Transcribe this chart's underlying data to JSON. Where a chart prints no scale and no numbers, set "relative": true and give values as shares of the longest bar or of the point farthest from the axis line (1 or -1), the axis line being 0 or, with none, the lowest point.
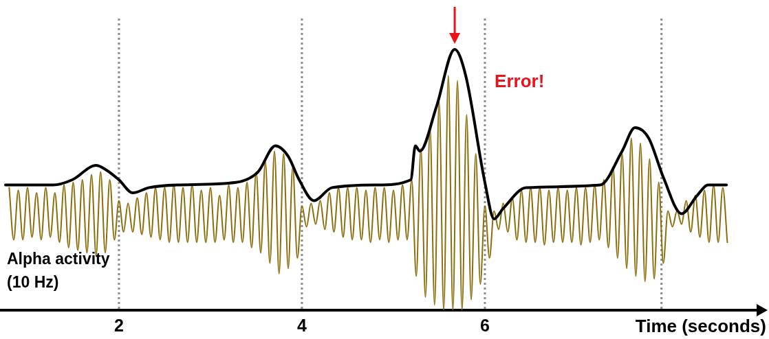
{
  "chart_data": {
    "type": "line",
    "relative": true,
    "xlabel": "Time (seconds)",
    "ylabel": "Alpha activity\n(10 Hz)",
    "xlim": [
      0.7,
      9.0
    ],
    "xticks": [
      2,
      4,
      6
    ],
    "grid": false,
    "legend": false,
    "marker": "none",
    "line_style": "solid",
    "annotations": [
      {
        "text": "Error!",
        "x": 5.67,
        "y": 1.0
      }
    ],
    "ref_lines": [
      {
        "axis": "x",
        "value": 2,
        "color": "#8c8c8c",
        "line_style": "dotted"
      },
      {
        "axis": "x",
        "value": 4,
        "color": "#8c8c8c",
        "line_style": "dotted"
      },
      {
        "axis": "x",
        "value": 6,
        "color": "#8c8c8c",
        "line_style": "dotted"
      },
      {
        "axis": "x",
        "value": 7.93,
        "color": "#8c8c8c",
        "line_style": "dotted"
      }
    ],
    "series": [
      {
        "color": "#8a6d0b",
        "x": [
          0.8,
          0.85,
          0.9,
          0.95,
          1.0,
          1.05,
          1.1,
          1.15,
          1.2,
          1.25,
          1.3,
          1.35,
          1.4,
          1.45,
          1.5,
          1.55,
          1.6,
          1.65,
          1.7,
          1.75,
          1.8,
          1.85,
          1.9,
          1.95,
          2.0,
          2.05,
          2.1,
          2.15,
          2.2,
          2.25,
          2.3,
          2.35,
          2.4,
          2.45,
          2.5,
          2.55,
          2.6,
          2.65,
          2.7,
          2.75,
          2.8,
          2.85,
          2.9,
          2.95,
          3.0,
          3.05,
          3.1,
          3.15,
          3.2,
          3.25,
          3.3,
          3.35,
          3.4,
          3.45,
          3.5,
          3.55,
          3.6,
          3.65,
          3.7,
          3.75,
          3.8,
          3.85,
          3.9,
          3.95,
          4.0,
          4.05,
          4.1,
          4.15,
          4.2,
          4.25,
          4.3,
          4.35,
          4.4,
          4.45,
          4.5,
          4.55,
          4.6,
          4.65,
          4.7,
          4.75,
          4.8,
          4.85,
          4.9,
          4.95,
          5.0,
          5.05,
          5.1,
          5.15,
          5.2,
          5.25,
          5.3,
          5.35,
          5.4,
          5.45,
          5.5,
          5.55,
          5.6,
          5.65,
          5.7,
          5.75,
          5.8,
          5.85,
          5.9,
          5.95,
          6.0,
          6.05,
          6.1,
          6.15,
          6.2,
          6.25,
          6.3,
          6.35,
          6.4,
          6.45,
          6.5,
          6.55,
          6.6,
          6.65,
          6.7,
          6.75,
          6.8,
          6.85,
          6.9,
          6.95,
          7.0,
          7.05,
          7.1,
          7.15,
          7.2,
          7.25,
          7.3,
          7.35,
          7.4,
          7.45,
          7.5,
          7.55,
          7.6,
          7.65,
          7.7,
          7.75,
          7.8,
          7.85,
          7.9,
          7.95,
          8.0,
          8.05,
          8.1,
          8.15,
          8.2,
          8.25,
          8.3,
          8.35,
          8.4,
          8.45,
          8.5,
          8.55,
          8.6,
          8.65
        ],
        "values": [
          0.47,
          0.27,
          0.46,
          0.27,
          0.47,
          0.28,
          0.45,
          0.27,
          0.47,
          0.28,
          0.45,
          0.26,
          0.48,
          0.24,
          0.49,
          0.23,
          0.5,
          0.22,
          0.52,
          0.21,
          0.53,
          0.22,
          0.5,
          0.27,
          0.42,
          0.3,
          0.41,
          0.3,
          0.43,
          0.29,
          0.45,
          0.28,
          0.47,
          0.27,
          0.47,
          0.26,
          0.48,
          0.26,
          0.47,
          0.26,
          0.48,
          0.26,
          0.46,
          0.26,
          0.47,
          0.26,
          0.44,
          0.27,
          0.48,
          0.26,
          0.47,
          0.26,
          0.49,
          0.24,
          0.53,
          0.22,
          0.57,
          0.18,
          0.61,
          0.14,
          0.6,
          0.16,
          0.55,
          0.2,
          0.4,
          0.32,
          0.41,
          0.33,
          0.42,
          0.31,
          0.45,
          0.3,
          0.47,
          0.28,
          0.47,
          0.27,
          0.47,
          0.27,
          0.46,
          0.26,
          0.47,
          0.27,
          0.47,
          0.26,
          0.46,
          0.27,
          0.48,
          0.27,
          0.5,
          0.13,
          0.62,
          0.05,
          0.7,
          0.02,
          0.8,
          0.0,
          0.9,
          0.0,
          0.88,
          0.0,
          0.75,
          0.04,
          0.6,
          0.1,
          0.4,
          0.2,
          0.38,
          0.31,
          0.41,
          0.3,
          0.43,
          0.27,
          0.46,
          0.26,
          0.47,
          0.26,
          0.47,
          0.25,
          0.46,
          0.26,
          0.47,
          0.26,
          0.46,
          0.26,
          0.47,
          0.25,
          0.47,
          0.26,
          0.48,
          0.27,
          0.5,
          0.24,
          0.55,
          0.2,
          0.6,
          0.16,
          0.66,
          0.13,
          0.64,
          0.11,
          0.58,
          0.12,
          0.49,
          0.18,
          0.38,
          0.32,
          0.38,
          0.33,
          0.42,
          0.3,
          0.44,
          0.28,
          0.46,
          0.26,
          0.48,
          0.26,
          0.47,
          0.26
        ]
      },
      {
        "color": "#000000",
        "x": [
          0.76,
          1.28,
          1.49,
          1.75,
          1.85,
          2.0,
          2.15,
          2.33,
          2.63,
          3.28,
          3.52,
          3.71,
          3.85,
          3.97,
          4.13,
          4.33,
          4.82,
          5.19,
          5.24,
          5.29,
          5.47,
          5.67,
          5.79,
          6.0,
          6.1,
          6.2,
          6.45,
          7.26,
          7.5,
          7.64,
          7.79,
          7.95,
          8.15,
          8.32,
          8.44,
          8.64
        ],
        "values": [
          0.48,
          0.48,
          0.5,
          0.555,
          0.54,
          0.5,
          0.45,
          0.47,
          0.48,
          0.49,
          0.53,
          0.63,
          0.59,
          0.5,
          0.42,
          0.47,
          0.48,
          0.5,
          0.63,
          0.61,
          0.78,
          1.0,
          0.9,
          0.49,
          0.35,
          0.39,
          0.47,
          0.48,
          0.61,
          0.7,
          0.66,
          0.51,
          0.37,
          0.44,
          0.48,
          0.48
        ]
      }
    ]
  }
}
